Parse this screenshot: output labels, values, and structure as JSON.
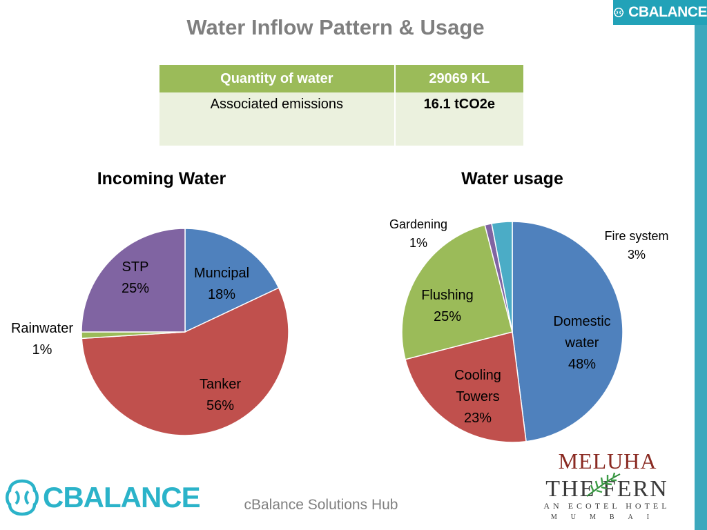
{
  "slide_title": "Water Inflow Pattern & Usage",
  "brand": {
    "name": "CBALANCE",
    "color": "#22a2b8"
  },
  "summary_table": {
    "headers": [
      "Quantity of water",
      "29069 KL"
    ],
    "rows": [
      [
        "Associated emissions",
        "16.1 tCO2e"
      ]
    ]
  },
  "footer": {
    "text": "cBalance Solutions Hub"
  },
  "partner_logo": {
    "line1": "MELUHA",
    "line2": "THE FERN",
    "line3": "AN ECOTEL HOTEL",
    "line4": "MUMBAI"
  },
  "chart_data": [
    {
      "type": "pie",
      "title": "Incoming Water",
      "slices": [
        {
          "label": "Muncipal",
          "value": 18,
          "pct_label": "18%",
          "color": "#4f81bd"
        },
        {
          "label": "Tanker",
          "value": 56,
          "pct_label": "56%",
          "color": "#c0504d"
        },
        {
          "label": "Rainwater",
          "value": 1,
          "pct_label": "1%",
          "color": "#9bbb59"
        },
        {
          "label": "STP",
          "value": 25,
          "pct_label": "25%",
          "color": "#8064a2"
        }
      ]
    },
    {
      "type": "pie",
      "title": "Water usage",
      "slices": [
        {
          "label": "Domestic water",
          "value": 48,
          "pct_label": "48%",
          "color": "#4f81bd"
        },
        {
          "label": "Cooling Towers",
          "value": 23,
          "pct_label": "23%",
          "color": "#c0504d"
        },
        {
          "label": "Flushing",
          "value": 25,
          "pct_label": "25%",
          "color": "#9bbb59"
        },
        {
          "label": "Gardening",
          "value": 1,
          "pct_label": "1%",
          "color": "#8064a2"
        },
        {
          "label": "Fire system",
          "value": 3,
          "pct_label": "3%",
          "color": "#4bacc6"
        }
      ]
    }
  ]
}
